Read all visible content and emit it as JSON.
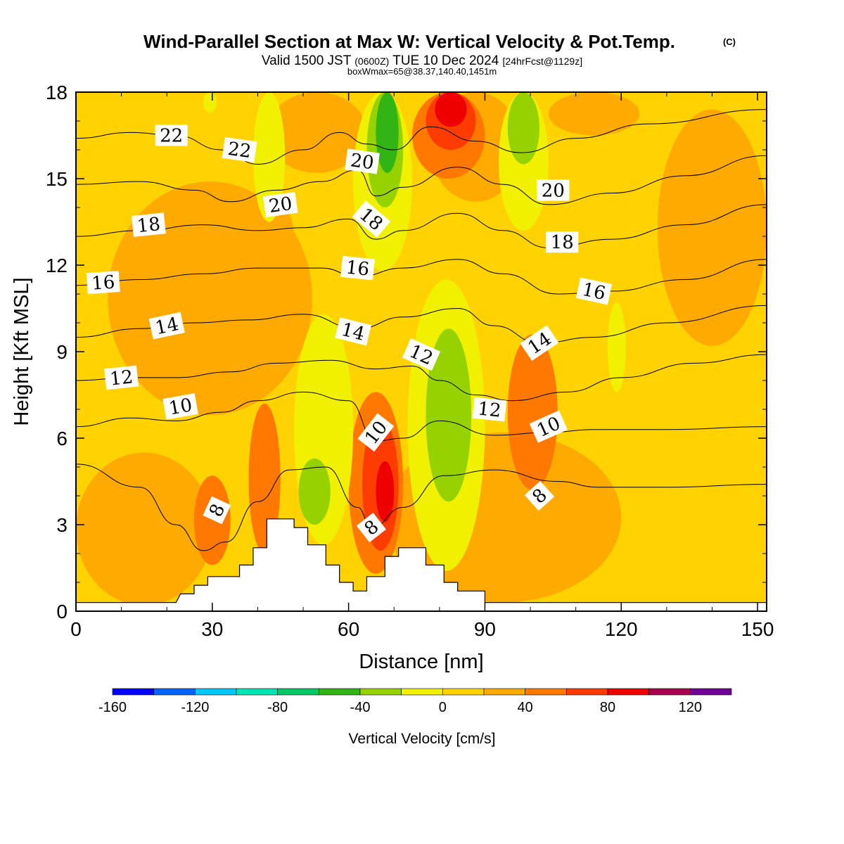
{
  "title": {
    "main": "Wind-Parallel Section at Max W: Vertical Velocity & Pot.Temp.",
    "copyright": "(C)",
    "valid_prefix": "Valid 1500 JST",
    "valid_zulu": "(0600Z)",
    "valid_date": "TUE 10 Dec 2024",
    "forecast": "[24hrFcst@1129z]",
    "box_info": "boxWmax=65@38.37,140.40,1451m"
  },
  "chart_data": {
    "type": "heatmap",
    "xlabel": "Distance [nm]",
    "ylabel": "Height [Kft MSL]",
    "xlim": [
      0,
      152
    ],
    "ylim": [
      0,
      18
    ],
    "x_ticks": [
      0,
      30,
      60,
      90,
      120,
      150
    ],
    "y_ticks": [
      0,
      3,
      6,
      9,
      12,
      15,
      18
    ],
    "grid": false,
    "background_value": 0,
    "colorbar": {
      "title": "Vertical Velocity [cm/s]",
      "levels": [
        -160,
        -140,
        -120,
        -100,
        -80,
        -60,
        -40,
        -20,
        0,
        20,
        40,
        60,
        80,
        100,
        120,
        140
      ],
      "colors": [
        "#0000ff",
        "#0064ff",
        "#00c8ff",
        "#00e6b4",
        "#00c864",
        "#32b414",
        "#96d200",
        "#f0f000",
        "#ffd200",
        "#ffaa00",
        "#ff7800",
        "#ff3c00",
        "#ee0000",
        "#aa0050",
        "#6e0096"
      ],
      "tick_labels": [
        "-160",
        "-120",
        "-80",
        "-40",
        "0",
        "40",
        "80",
        "120"
      ]
    },
    "vertical_velocity_cells": [
      {
        "x": [
          7,
          52
        ],
        "y": [
          6.8,
          14.9
        ],
        "value": 20
      },
      {
        "x": [
          0,
          30
        ],
        "y": [
          0.2,
          5.5
        ],
        "value": 20
      },
      {
        "x": [
          68,
          120
        ],
        "y": [
          0.3,
          6.2
        ],
        "value": 20
      },
      {
        "x": [
          95,
          106
        ],
        "y": [
          4.2,
          9.6
        ],
        "value": 40
      },
      {
        "x": [
          128,
          152
        ],
        "y": [
          9.2,
          17.4
        ],
        "value": 20
      },
      {
        "x": [
          78,
          98
        ],
        "y": [
          14.2,
          18
        ],
        "value": 20
      },
      {
        "x": [
          42,
          64
        ],
        "y": [
          15.2,
          18
        ],
        "value": 20
      },
      {
        "x": [
          104,
          124
        ],
        "y": [
          16.5,
          18
        ],
        "value": 20
      },
      {
        "x": [
          34,
          48
        ],
        "y": [
          11.5,
          14.5
        ],
        "value": 20
      },
      {
        "x": [
          26,
          34
        ],
        "y": [
          1.6,
          4.7
        ],
        "value": 40
      },
      {
        "x": [
          38,
          45
        ],
        "y": [
          2.0,
          7.2
        ],
        "value": 40
      },
      {
        "x": [
          60,
          72
        ],
        "y": [
          1.3,
          7.6
        ],
        "value": 40
      },
      {
        "x": [
          63,
          71
        ],
        "y": [
          2.1,
          6.7
        ],
        "value": 60
      },
      {
        "x": [
          66,
          70
        ],
        "y": [
          3.1,
          5.2
        ],
        "value": 80
      },
      {
        "x": [
          74,
          90
        ],
        "y": [
          15.0,
          18
        ],
        "value": 40
      },
      {
        "x": [
          77,
          88
        ],
        "y": [
          16.0,
          18
        ],
        "value": 60
      },
      {
        "x": [
          79,
          86
        ],
        "y": [
          16.8,
          18
        ],
        "value": 80
      },
      {
        "x": [
          48,
          61
        ],
        "y": [
          2.3,
          10.3
        ],
        "value": -20
      },
      {
        "x": [
          49,
          56
        ],
        "y": [
          3.0,
          5.3
        ],
        "value": -40
      },
      {
        "x": [
          73,
          90
        ],
        "y": [
          1.4,
          11.5
        ],
        "value": -20
      },
      {
        "x": [
          77,
          87
        ],
        "y": [
          3.8,
          9.8
        ],
        "value": -40
      },
      {
        "x": [
          61,
          74
        ],
        "y": [
          11.8,
          18
        ],
        "value": -20
      },
      {
        "x": [
          64,
          72
        ],
        "y": [
          14.0,
          18
        ],
        "value": -40
      },
      {
        "x": [
          66,
          71
        ],
        "y": [
          15.2,
          18
        ],
        "value": -60
      },
      {
        "x": [
          39,
          46
        ],
        "y": [
          13.5,
          18
        ],
        "value": -20
      },
      {
        "x": [
          93,
          104
        ],
        "y": [
          13.2,
          18
        ],
        "value": -20
      },
      {
        "x": [
          95,
          102
        ],
        "y": [
          15.5,
          18
        ],
        "value": -40
      },
      {
        "x": [
          117,
          121
        ],
        "y": [
          7.6,
          10.7
        ],
        "value": -20
      },
      {
        "x": [
          28,
          31
        ],
        "y": [
          17.3,
          18
        ],
        "value": -20
      }
    ],
    "theta_contours": [
      {
        "level": 8,
        "points": [
          [
            0,
            5.1
          ],
          [
            14,
            4.3
          ],
          [
            22,
            3.0
          ],
          [
            28,
            2.1
          ],
          [
            33,
            2.4
          ],
          [
            40,
            3.8
          ],
          [
            47,
            4.9
          ],
          [
            55,
            5.0
          ],
          [
            62,
            3.6
          ],
          [
            65,
            2.9
          ],
          [
            72,
            3.6
          ],
          [
            81,
            4.7
          ],
          [
            92,
            4.9
          ],
          [
            106,
            4.5
          ],
          [
            115,
            4.3
          ],
          [
            130,
            4.3
          ],
          [
            152,
            4.4
          ]
        ]
      },
      {
        "level": 10,
        "points": [
          [
            0,
            6.4
          ],
          [
            12,
            6.7
          ],
          [
            22,
            6.6
          ],
          [
            32,
            6.9
          ],
          [
            40,
            7.3
          ],
          [
            50,
            7.6
          ],
          [
            60,
            7.3
          ],
          [
            66,
            5.9
          ],
          [
            72,
            6.0
          ],
          [
            80,
            6.6
          ],
          [
            92,
            6.1
          ],
          [
            104,
            6.2
          ],
          [
            114,
            6.3
          ],
          [
            130,
            6.3
          ],
          [
            152,
            6.4
          ]
        ]
      },
      {
        "level": 12,
        "points": [
          [
            0,
            8.0
          ],
          [
            12,
            8.1
          ],
          [
            22,
            8.1
          ],
          [
            34,
            8.3
          ],
          [
            44,
            8.6
          ],
          [
            56,
            8.7
          ],
          [
            66,
            8.4
          ],
          [
            74,
            8.5
          ],
          [
            80,
            8.0
          ],
          [
            88,
            7.5
          ],
          [
            96,
            7.3
          ],
          [
            108,
            7.6
          ],
          [
            120,
            8.1
          ],
          [
            136,
            8.6
          ],
          [
            152,
            8.9
          ]
        ]
      },
      {
        "level": 14,
        "points": [
          [
            0,
            9.5
          ],
          [
            14,
            9.8
          ],
          [
            26,
            10.0
          ],
          [
            38,
            10.1
          ],
          [
            50,
            10.3
          ],
          [
            62,
            9.8
          ],
          [
            72,
            10.2
          ],
          [
            84,
            10.5
          ],
          [
            92,
            9.9
          ],
          [
            102,
            9.3
          ],
          [
            114,
            9.5
          ],
          [
            130,
            10.0
          ],
          [
            152,
            10.6
          ]
        ]
      },
      {
        "level": 16,
        "points": [
          [
            0,
            11.3
          ],
          [
            14,
            11.5
          ],
          [
            28,
            11.7
          ],
          [
            40,
            11.9
          ],
          [
            54,
            11.9
          ],
          [
            62,
            11.6
          ],
          [
            72,
            11.9
          ],
          [
            84,
            12.2
          ],
          [
            94,
            11.7
          ],
          [
            106,
            11.0
          ],
          [
            118,
            11.1
          ],
          [
            134,
            11.5
          ],
          [
            152,
            12.2
          ]
        ]
      },
      {
        "level": 18,
        "points": [
          [
            0,
            13.0
          ],
          [
            14,
            13.2
          ],
          [
            28,
            13.4
          ],
          [
            40,
            13.2
          ],
          [
            50,
            13.3
          ],
          [
            60,
            13.6
          ],
          [
            66,
            12.9
          ],
          [
            72,
            13.2
          ],
          [
            84,
            13.8
          ],
          [
            94,
            13.2
          ],
          [
            104,
            12.6
          ],
          [
            118,
            12.9
          ],
          [
            134,
            13.4
          ],
          [
            152,
            14.1
          ]
        ]
      },
      {
        "level": 20,
        "points": [
          [
            0,
            14.8
          ],
          [
            14,
            14.9
          ],
          [
            26,
            14.6
          ],
          [
            34,
            14.2
          ],
          [
            44,
            14.6
          ],
          [
            54,
            14.9
          ],
          [
            62,
            15.3
          ],
          [
            66,
            14.4
          ],
          [
            72,
            14.7
          ],
          [
            84,
            15.4
          ],
          [
            94,
            14.8
          ],
          [
            104,
            14.1
          ],
          [
            118,
            14.5
          ],
          [
            134,
            15.1
          ],
          [
            152,
            15.8
          ]
        ]
      },
      {
        "level": 22,
        "points": [
          [
            0,
            16.4
          ],
          [
            12,
            16.6
          ],
          [
            22,
            16.5
          ],
          [
            32,
            16.0
          ],
          [
            40,
            15.5
          ],
          [
            50,
            16.0
          ],
          [
            58,
            16.6
          ],
          [
            64,
            16.2
          ],
          [
            70,
            16.0
          ],
          [
            78,
            16.8
          ],
          [
            88,
            16.3
          ],
          [
            98,
            15.9
          ],
          [
            110,
            16.4
          ],
          [
            126,
            16.9
          ],
          [
            152,
            17.4
          ]
        ]
      }
    ],
    "terrain_profile": [
      [
        0,
        0.3
      ],
      [
        22,
        0.3
      ],
      [
        23,
        0.6
      ],
      [
        26,
        0.6
      ],
      [
        26,
        0.9
      ],
      [
        29,
        0.9
      ],
      [
        29,
        1.2
      ],
      [
        36,
        1.2
      ],
      [
        36,
        1.6
      ],
      [
        39,
        1.6
      ],
      [
        39,
        2.2
      ],
      [
        42,
        2.2
      ],
      [
        42,
        3.2
      ],
      [
        48,
        3.2
      ],
      [
        48,
        2.9
      ],
      [
        51,
        2.9
      ],
      [
        51,
        2.3
      ],
      [
        55,
        2.3
      ],
      [
        55,
        1.6
      ],
      [
        58,
        1.6
      ],
      [
        58,
        1.0
      ],
      [
        61,
        1.0
      ],
      [
        61,
        0.7
      ],
      [
        64,
        0.7
      ],
      [
        64,
        1.2
      ],
      [
        68,
        1.2
      ],
      [
        68,
        1.9
      ],
      [
        71,
        1.9
      ],
      [
        71,
        2.2
      ],
      [
        77,
        2.2
      ],
      [
        77,
        1.6
      ],
      [
        81,
        1.6
      ],
      [
        81,
        1.0
      ],
      [
        84,
        1.0
      ],
      [
        84,
        0.7
      ],
      [
        90,
        0.7
      ],
      [
        90,
        0.3
      ],
      [
        152,
        0.3
      ]
    ],
    "contour_labels": [
      {
        "text": "22",
        "x": 21,
        "y": 16.5,
        "angle": 0
      },
      {
        "text": "22",
        "x": 36,
        "y": 16.0,
        "angle": 8
      },
      {
        "text": "20",
        "x": 45,
        "y": 14.1,
        "angle": -8
      },
      {
        "text": "20",
        "x": 63,
        "y": 15.6,
        "angle": 8
      },
      {
        "text": "20",
        "x": 105,
        "y": 14.6,
        "angle": 0
      },
      {
        "text": "18",
        "x": 16,
        "y": 13.4,
        "angle": -6
      },
      {
        "text": "18",
        "x": 65,
        "y": 13.6,
        "angle": 40
      },
      {
        "text": "18",
        "x": 107,
        "y": 12.8,
        "angle": 0
      },
      {
        "text": "16",
        "x": 6,
        "y": 11.4,
        "angle": -4
      },
      {
        "text": "16",
        "x": 62,
        "y": 11.9,
        "angle": 6
      },
      {
        "text": "16",
        "x": 114,
        "y": 11.1,
        "angle": 12
      },
      {
        "text": "14",
        "x": 20,
        "y": 9.9,
        "angle": -12
      },
      {
        "text": "14",
        "x": 61,
        "y": 9.7,
        "angle": 14
      },
      {
        "text": "14",
        "x": 102,
        "y": 9.3,
        "angle": -34
      },
      {
        "text": "12",
        "x": 10,
        "y": 8.1,
        "angle": -6
      },
      {
        "text": "12",
        "x": 76,
        "y": 8.9,
        "angle": 24
      },
      {
        "text": "12",
        "x": 91,
        "y": 7.0,
        "angle": 6
      },
      {
        "text": "10",
        "x": 23,
        "y": 7.1,
        "angle": -10
      },
      {
        "text": "10",
        "x": 66,
        "y": 6.2,
        "angle": -52
      },
      {
        "text": "10",
        "x": 104,
        "y": 6.4,
        "angle": -24
      },
      {
        "text": "8",
        "x": 31,
        "y": 3.5,
        "angle": -65
      },
      {
        "text": "8",
        "x": 65,
        "y": 2.9,
        "angle": -38
      },
      {
        "text": "8",
        "x": 102,
        "y": 4.0,
        "angle": -42
      }
    ]
  }
}
